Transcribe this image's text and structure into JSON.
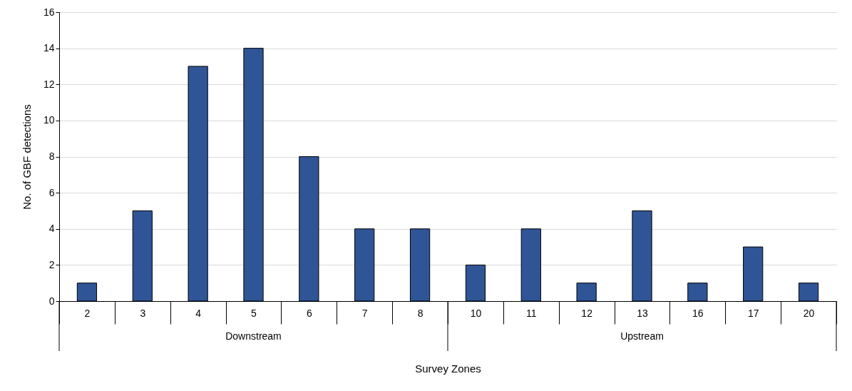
{
  "chart_data": {
    "type": "bar",
    "categories": [
      "2",
      "3",
      "4",
      "5",
      "6",
      "7",
      "8",
      "10",
      "11",
      "12",
      "13",
      "16",
      "17",
      "20"
    ],
    "values": [
      1,
      5,
      13,
      14,
      8,
      4,
      4,
      2,
      4,
      1,
      5,
      1,
      3,
      1
    ],
    "color": "#2f5597",
    "xlabel": "Survey Zones",
    "ylabel": "No. of GBF detections",
    "ylim": [
      0,
      16
    ],
    "yticks": [
      0,
      2,
      4,
      6,
      8,
      10,
      12,
      14,
      16
    ],
    "grid": "y",
    "annotations": [
      "Downstream",
      "Upstream"
    ]
  }
}
